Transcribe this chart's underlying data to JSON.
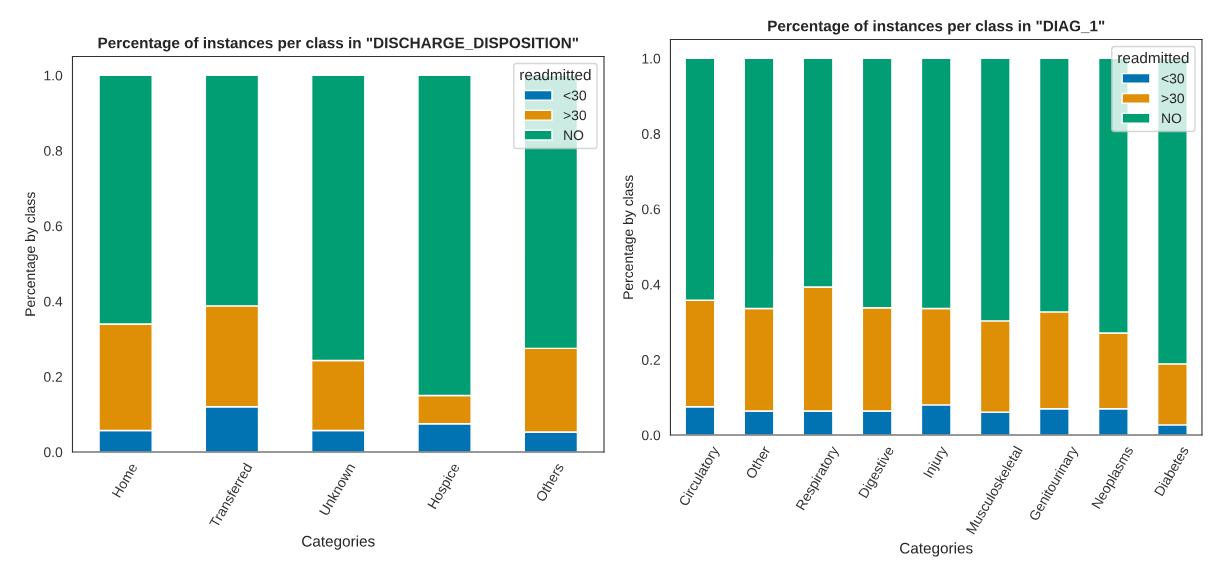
{
  "chart_data": [
    {
      "type": "bar",
      "stacked": true,
      "title": "Percentage of instances per class in \"DISCHARGE_DISPOSITION\"",
      "xlabel": "Categories",
      "ylabel": "Percentage by class",
      "legend_title": "readmitted",
      "legend": "top right",
      "grid": false,
      "categories": [
        "Home",
        "Transferred",
        "Unknown",
        "Hospice",
        "Others"
      ],
      "ylim": [
        0,
        1.05
      ],
      "yticks": [
        {
          "value": 0,
          "label": "0.0"
        },
        {
          "value": 0.2,
          "label": "0.2"
        },
        {
          "value": 0.4,
          "label": "0.4"
        },
        {
          "value": 0.6,
          "label": "0.6"
        },
        {
          "value": 0.8,
          "label": "0.8"
        },
        {
          "value": 1,
          "label": "1.0"
        }
      ],
      "series": [
        {
          "name": "<30",
          "color": "#0173b2",
          "values": [
            0.057,
            0.12,
            0.057,
            0.075,
            0.053
          ]
        },
        {
          "name": ">30",
          "color": "#de8f05",
          "values": [
            0.283,
            0.268,
            0.186,
            0.075,
            0.222
          ]
        },
        {
          "name": "NO",
          "color": "#029e73",
          "values": [
            0.66,
            0.612,
            0.757,
            0.85,
            0.725
          ]
        }
      ]
    },
    {
      "type": "bar",
      "stacked": true,
      "title": "Percentage of instances per class in \"DIAG_1\"",
      "xlabel": "Categories",
      "ylabel": "Percentage by class",
      "legend_title": "readmitted",
      "legend": "top right",
      "grid": false,
      "categories": [
        "Circulatory",
        "Other",
        "Respiratory",
        "Digestive",
        "Injury",
        "Musculoskeletal",
        "Genitourinary",
        "Neoplasms",
        "Diabetes"
      ],
      "ylim": [
        0,
        1.05
      ],
      "yticks": [
        {
          "value": 0,
          "label": "0.0"
        },
        {
          "value": 0.2,
          "label": "0.2"
        },
        {
          "value": 0.4,
          "label": "0.4"
        },
        {
          "value": 0.6,
          "label": "0.6"
        },
        {
          "value": 0.8,
          "label": "0.8"
        },
        {
          "value": 1,
          "label": "1.0"
        }
      ],
      "series": [
        {
          "name": "<30",
          "color": "#0173b2",
          "values": [
            0.075,
            0.064,
            0.064,
            0.064,
            0.08,
            0.061,
            0.07,
            0.07,
            0.027
          ]
        },
        {
          "name": ">30",
          "color": "#de8f05",
          "values": [
            0.283,
            0.272,
            0.329,
            0.274,
            0.256,
            0.242,
            0.257,
            0.201,
            0.162
          ]
        },
        {
          "name": "NO",
          "color": "#029e73",
          "values": [
            0.642,
            0.664,
            0.607,
            0.662,
            0.664,
            0.697,
            0.673,
            0.729,
            0.811
          ]
        }
      ]
    }
  ]
}
